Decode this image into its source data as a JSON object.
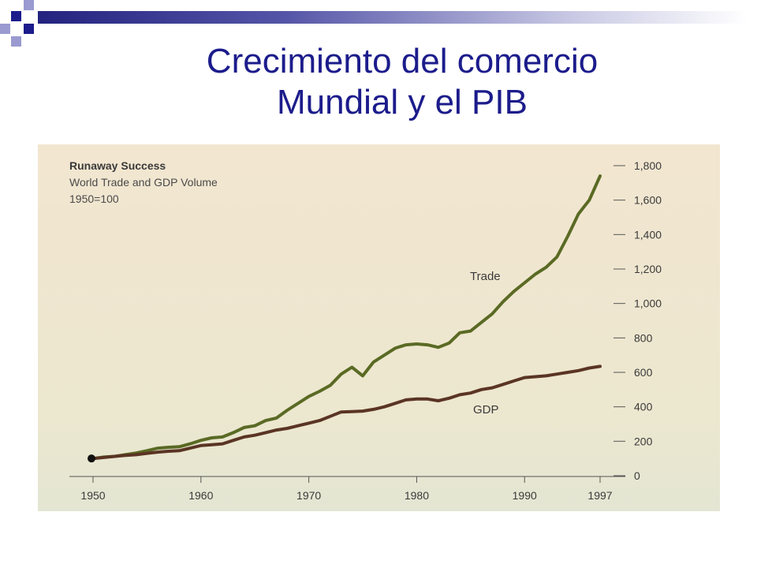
{
  "slide": {
    "title_line1": "Crecimiento del comercio",
    "title_line2": "Mundial y el PIB",
    "colors": {
      "title": "#1c1c8c",
      "deco_dark": "#1c1c8c",
      "deco_light": "#9a9ad0",
      "band": "#23237f"
    }
  },
  "chart_data": {
    "type": "line",
    "title": "Runaway Success",
    "subtitle_line1": "World Trade and GDP Volume",
    "subtitle_line2": "1950=100",
    "xlabel": "",
    "ylabel": "",
    "xlim": [
      1950,
      1997
    ],
    "ylim": [
      0,
      1800
    ],
    "x_ticks": [
      1950,
      1960,
      1970,
      1980,
      1990,
      1997
    ],
    "y_ticks": [
      0,
      200,
      400,
      600,
      800,
      1000,
      1200,
      1400,
      1600,
      1800
    ],
    "y_tick_labels": [
      "0",
      "200",
      "400",
      "600",
      "800",
      "1,000",
      "1,200",
      "1,400",
      "1,600",
      "1,800"
    ],
    "y_axis_side": "right",
    "grid": false,
    "start_marker": {
      "x": 1950,
      "y": 100
    },
    "series": [
      {
        "name": "Trade",
        "color": "#5a6a24",
        "x": [
          1950,
          1951,
          1952,
          1953,
          1954,
          1955,
          1956,
          1957,
          1958,
          1959,
          1960,
          1961,
          1962,
          1963,
          1964,
          1965,
          1966,
          1967,
          1968,
          1969,
          1970,
          1971,
          1972,
          1973,
          1974,
          1975,
          1976,
          1977,
          1978,
          1979,
          1980,
          1981,
          1982,
          1983,
          1984,
          1985,
          1986,
          1987,
          1988,
          1989,
          1990,
          1991,
          1992,
          1993,
          1994,
          1995,
          1996,
          1997
        ],
        "y": [
          100,
          108,
          112,
          122,
          132,
          145,
          160,
          165,
          168,
          185,
          205,
          220,
          225,
          250,
          280,
          290,
          320,
          335,
          380,
          420,
          460,
          490,
          525,
          590,
          630,
          580,
          660,
          700,
          740,
          760,
          765,
          760,
          745,
          770,
          830,
          840,
          890,
          940,
          1010,
          1070,
          1120,
          1170,
          1210,
          1270,
          1390,
          1520,
          1600,
          1740
        ]
      },
      {
        "name": "GDP",
        "color": "#5a3424",
        "x": [
          1950,
          1951,
          1952,
          1953,
          1954,
          1955,
          1956,
          1957,
          1958,
          1959,
          1960,
          1961,
          1962,
          1963,
          1964,
          1965,
          1966,
          1967,
          1968,
          1969,
          1970,
          1971,
          1972,
          1973,
          1974,
          1975,
          1976,
          1977,
          1978,
          1979,
          1980,
          1981,
          1982,
          1983,
          1984,
          1985,
          1986,
          1987,
          1988,
          1989,
          1990,
          1991,
          1992,
          1993,
          1994,
          1995,
          1996,
          1997
        ],
        "y": [
          100,
          106,
          112,
          118,
          122,
          130,
          137,
          142,
          145,
          160,
          175,
          180,
          185,
          205,
          225,
          235,
          250,
          265,
          275,
          290,
          305,
          320,
          345,
          370,
          372,
          375,
          385,
          400,
          420,
          440,
          445,
          445,
          435,
          450,
          470,
          480,
          500,
          510,
          530,
          550,
          570,
          575,
          580,
          590,
          600,
          610,
          625,
          635
        ]
      }
    ]
  }
}
